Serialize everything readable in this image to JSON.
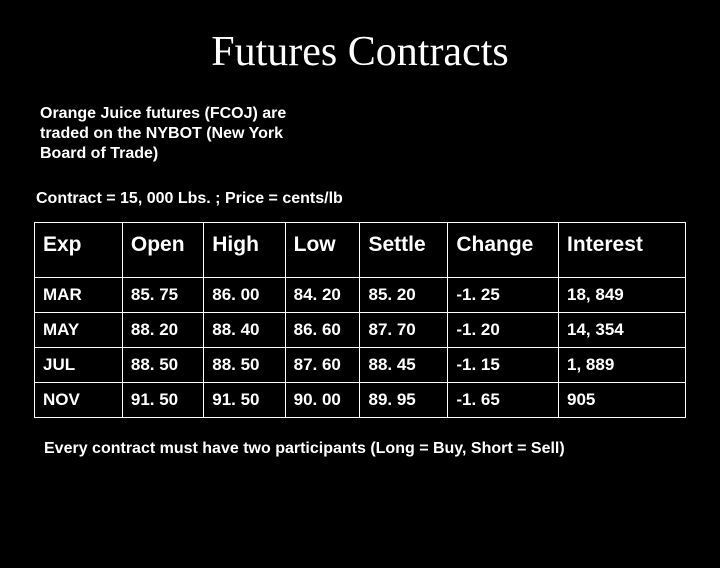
{
  "title": "Futures Contracts",
  "subtitle_l1": "Orange Juice futures (FCOJ) are",
  "subtitle_l2": "traded on the NYBOT (New York",
  "subtitle_l3": "Board of Trade)",
  "contract_info": "Contract = 15, 000 Lbs.  ; Price = cents/lb",
  "table": {
    "columns": [
      "Exp",
      "Open",
      "High",
      "Low",
      "Settle",
      "Change",
      "Interest"
    ],
    "rows": [
      [
        "MAR",
        "85. 75",
        "86. 00",
        "84. 20",
        "85. 20",
        "-1. 25",
        "18, 849"
      ],
      [
        "MAY",
        "88. 20",
        "88. 40",
        "86. 60",
        "87. 70",
        "-1. 20",
        "14, 354"
      ],
      [
        "JUL",
        "88. 50",
        "88. 50",
        "87. 60",
        "88. 45",
        "-1. 15",
        "1, 889"
      ],
      [
        "NOV",
        "91. 50",
        "91. 50",
        "90. 00",
        "89. 95",
        "-1. 65",
        "905"
      ]
    ],
    "border_color": "#ffffff",
    "text_color": "#ffffff",
    "header_fontsize": 21,
    "cell_fontsize": 17
  },
  "footnote": "Every contract must have two participants (Long = Buy, Short = Sell)",
  "background_color": "#000000",
  "title_color": "#ffffff"
}
